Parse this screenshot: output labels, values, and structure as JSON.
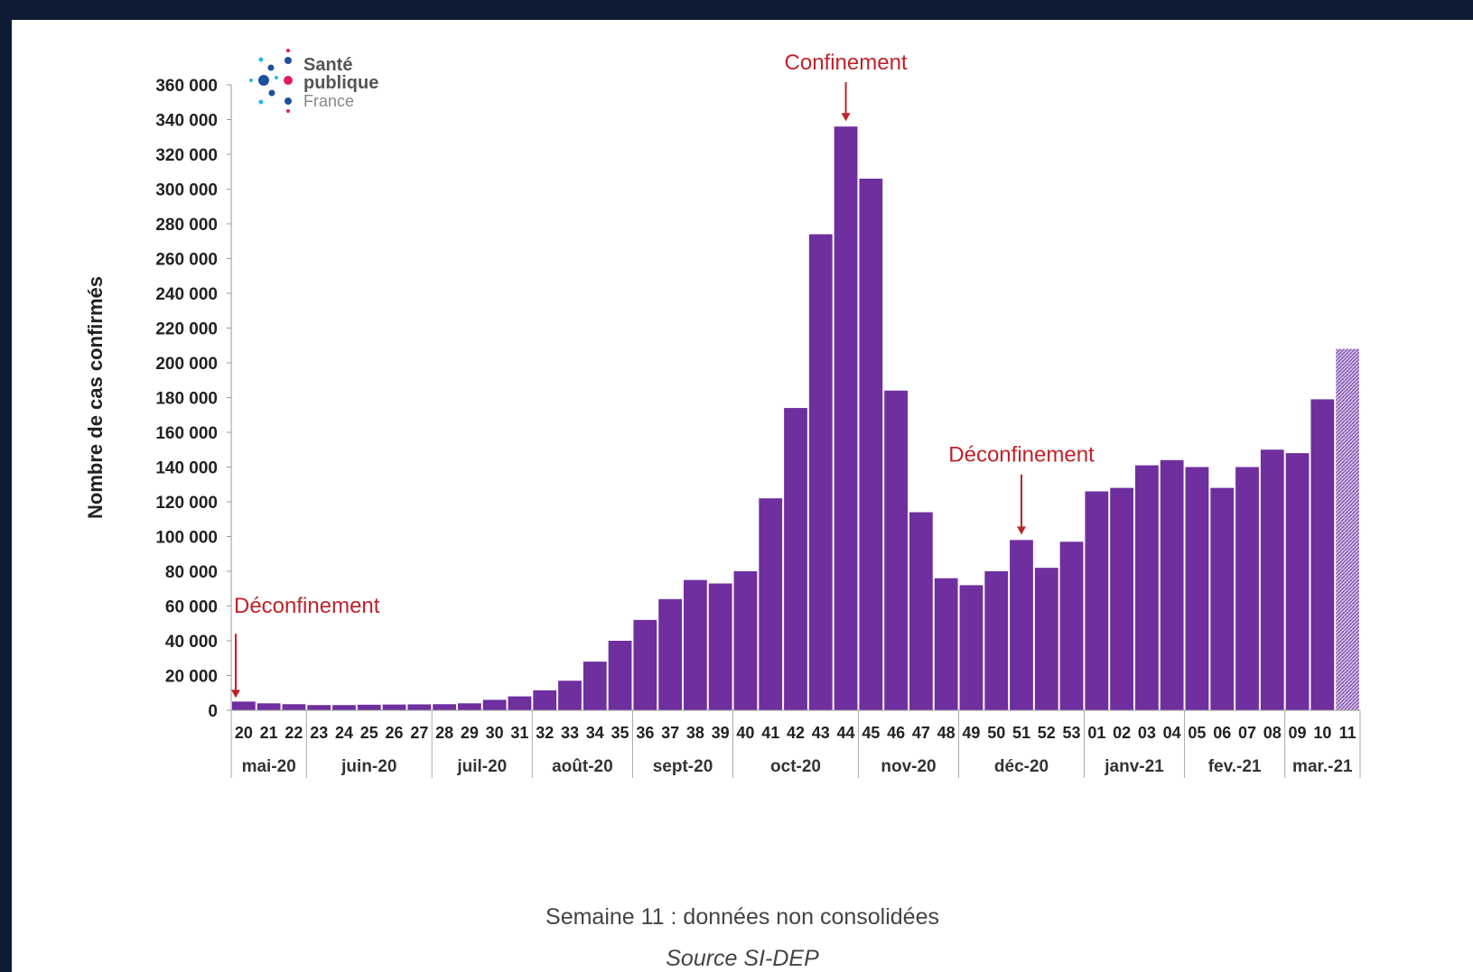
{
  "colors": {
    "frame": "#0f1b34",
    "bar": "#6f2f9f",
    "bar_provisional": "#c9b7de",
    "annotation": "#c0222a",
    "logo_blue": "#1f4f9f",
    "logo_cyan": "#29b6e6",
    "logo_pink": "#e5195f"
  },
  "logo": {
    "line1": "Santé",
    "line2": "publique",
    "line3": "France"
  },
  "notes": {
    "line1": "Semaine 11 : données non consolidées",
    "line2": "Source SI-DEP"
  },
  "chart_data": {
    "type": "bar",
    "title": "",
    "ylabel": "Nombre de cas confirmés",
    "xlabel": "",
    "ylim": [
      0,
      360000
    ],
    "yticks": [
      0,
      20000,
      40000,
      60000,
      80000,
      100000,
      120000,
      140000,
      160000,
      180000,
      200000,
      220000,
      240000,
      260000,
      280000,
      300000,
      320000,
      340000,
      360000
    ],
    "ytick_labels": [
      "0",
      "20 000",
      "40 000",
      "60 000",
      "80 000",
      "100 000",
      "120 000",
      "140 000",
      "160 000",
      "180 000",
      "200 000",
      "220 000",
      "240 000",
      "260 000",
      "280 000",
      "300 000",
      "320 000",
      "340 000",
      "360 000"
    ],
    "grid": false,
    "categories": [
      "20",
      "21",
      "22",
      "23",
      "24",
      "25",
      "26",
      "27",
      "28",
      "29",
      "30",
      "31",
      "32",
      "33",
      "34",
      "35",
      "36",
      "37",
      "38",
      "39",
      "40",
      "41",
      "42",
      "43",
      "44",
      "45",
      "46",
      "47",
      "48",
      "49",
      "50",
      "51",
      "52",
      "53",
      "01",
      "02",
      "03",
      "04",
      "05",
      "06",
      "07",
      "08",
      "09",
      "10",
      "11"
    ],
    "values": [
      5000,
      4000,
      3500,
      3000,
      3000,
      3200,
      3300,
      3400,
      3500,
      4000,
      6000,
      8000,
      11500,
      17000,
      28000,
      40000,
      52000,
      64000,
      75000,
      73000,
      80000,
      122000,
      174000,
      274000,
      336000,
      306000,
      184000,
      114000,
      76000,
      72000,
      80000,
      98000,
      82000,
      97000,
      126000,
      128000,
      141000,
      144000,
      140000,
      128000,
      140000,
      150000,
      148000,
      179000,
      208000
    ],
    "provisional": [
      false,
      false,
      false,
      false,
      false,
      false,
      false,
      false,
      false,
      false,
      false,
      false,
      false,
      false,
      false,
      false,
      false,
      false,
      false,
      false,
      false,
      false,
      false,
      false,
      false,
      false,
      false,
      false,
      false,
      false,
      false,
      false,
      false,
      false,
      false,
      false,
      false,
      false,
      false,
      false,
      false,
      false,
      false,
      false,
      true
    ],
    "months": [
      {
        "label": "mai-20",
        "span": 3
      },
      {
        "label": "juin-20",
        "span": 5
      },
      {
        "label": "juil-20",
        "span": 4
      },
      {
        "label": "août-20",
        "span": 4
      },
      {
        "label": "sept-20",
        "span": 4
      },
      {
        "label": "oct-20",
        "span": 5
      },
      {
        "label": "nov-20",
        "span": 4
      },
      {
        "label": "déc-20",
        "span": 5
      },
      {
        "label": "janv-21",
        "span": 4
      },
      {
        "label": "fev.-21",
        "span": 4
      },
      {
        "label": "mar.-21",
        "span": 3
      }
    ],
    "annotations": [
      {
        "text": "Déconfinement",
        "bar_index": 0
      },
      {
        "text": "Confinement",
        "bar_index": 24
      },
      {
        "text": "Déconfinement",
        "bar_index": 31
      }
    ]
  }
}
